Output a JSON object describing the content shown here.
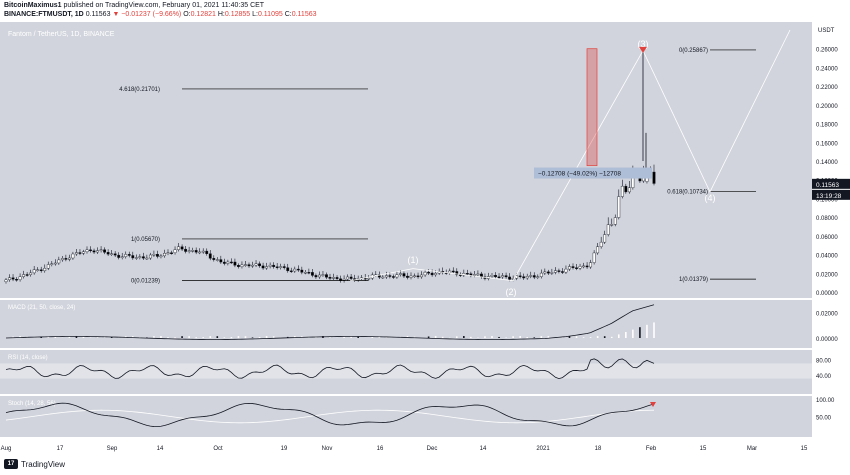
{
  "header": {
    "author": "BitcoinMaximus1",
    "published": "published on TradingView.com, February 01, 2021 11:40:35 CET",
    "symbol": "BINANCE:FTMUSDT, 1D",
    "price": "0.11563",
    "change": "▼ −0.01237 (−9.66%)",
    "o_label": "O:",
    "o_val": "0.12821",
    "h_label": "H:",
    "h_val": "0.12855",
    "l_label": "L:",
    "l_val": "0.11095",
    "c_label": "C:",
    "c_val": "0.11563"
  },
  "footer": {
    "brand": "TradingView",
    "logo_text": "17"
  },
  "colors": {
    "pane_bg": "#d1d4dc",
    "axis_bg": "#ffffff",
    "candle_up": "#ffffff",
    "candle_down": "#000000",
    "candle_border": "#131722",
    "text": "#131722",
    "accent_red": "#e0413c",
    "measure_box": "#aebed6",
    "macd_hist": "#ffffff",
    "signal": "#ffffff"
  },
  "chart_data": [
    {
      "type": "candlestick",
      "title": "Fantom / TetherUS, 1D, BINANCE",
      "currency": "USDT",
      "last_price_label": "0.11563",
      "countdown_label": "13:19:28",
      "ylim": [
        0,
        0.28
      ],
      "y_ticks": [
        0.26,
        0.24,
        0.22,
        0.2,
        0.18,
        0.16,
        0.14,
        0.12,
        0.1,
        0.08,
        0.06,
        0.04,
        0.02,
        0.0
      ],
      "y_tick_labels": [
        "0.26000",
        "0.24000",
        "0.22000",
        "0.20000",
        "0.18000",
        "0.16000",
        "0.14000",
        "0.12000",
        "0.10000",
        "0.08000",
        "0.06000",
        "0.04000",
        "0.02000",
        "0.00000"
      ],
      "x_tick_labels": [
        "Aug",
        "17",
        "Sep",
        "14",
        "Oct",
        "19",
        "Nov",
        "16",
        "Dec",
        "14",
        "2021",
        "18",
        "Feb",
        "15",
        "Mar",
        "15"
      ],
      "approx_close_path": [
        [
          0.011,
          0.013
        ],
        [
          0.018,
          0.02
        ],
        [
          0.026,
          0.031
        ],
        [
          0.035,
          0.043
        ],
        [
          0.051,
          0.04
        ],
        [
          0.032,
          0.047
        ],
        [
          0.038,
          0.036
        ],
        [
          0.036,
          0.041
        ],
        [
          0.044,
          0.048
        ],
        [
          0.046,
          0.04
        ],
        [
          0.032,
          0.031
        ],
        [
          0.027,
          0.03
        ],
        [
          0.029,
          0.027
        ],
        [
          0.026,
          0.024
        ],
        [
          0.022,
          0.018
        ],
        [
          0.016,
          0.014
        ],
        [
          0.012,
          0.015
        ],
        [
          0.017,
          0.016
        ],
        [
          0.018,
          0.017
        ],
        [
          0.016,
          0.018
        ],
        [
          0.02,
          0.023
        ],
        [
          0.022,
          0.018
        ],
        [
          0.017,
          0.017
        ],
        [
          0.016,
          0.016
        ],
        [
          0.015,
          0.016
        ],
        [
          0.018,
          0.022
        ],
        [
          0.024,
          0.025
        ],
        [
          0.024,
          0.034
        ],
        [
          0.06,
          0.09
        ],
        [
          0.128,
          0.125
        ],
        [
          0.127,
          0.116
        ]
      ],
      "fib_levels_left": [
        {
          "label": "4.618(0.21701)",
          "value": 0.21701
        },
        {
          "label": "1(0.05670)",
          "value": 0.0567
        },
        {
          "label": "0(0.01239)",
          "value": 0.01239
        }
      ],
      "fib_levels_right": [
        {
          "label": "0(0.25867)",
          "value": 0.25867
        },
        {
          "label": "0.618(0.10734)",
          "value": 0.10734
        },
        {
          "label": "1(0.01379)",
          "value": 0.01379
        }
      ],
      "wave_labels": [
        "(1)",
        "(2)",
        "(3)",
        "(4)"
      ],
      "measure_label": "−0.12708 (−49.02%) −12708"
    },
    {
      "type": "histogram",
      "title": "MACD (21, 50, close, 24)",
      "y_ticks": [
        0.02,
        0.0
      ],
      "y_tick_labels": [
        "0.02000",
        "0.00000"
      ],
      "signal_path_y": [
        0,
        0,
        0,
        0,
        0,
        0,
        0,
        0,
        0,
        0,
        0,
        0,
        0,
        0,
        0,
        0,
        0,
        0,
        0,
        0,
        0,
        0,
        0,
        0,
        0,
        0,
        0.001,
        0.003,
        0.01,
        0.02,
        0.025
      ]
    },
    {
      "type": "line",
      "title": "RSI (14, close)",
      "y_ticks": [
        80,
        40
      ],
      "y_tick_labels": [
        "80.00",
        "40.00"
      ],
      "band": [
        30,
        70
      ]
    },
    {
      "type": "line",
      "title": "Stoch (14, 28, 56)",
      "y_ticks": [
        100,
        50
      ],
      "y_tick_labels": [
        "100.00",
        "50.00"
      ]
    }
  ]
}
